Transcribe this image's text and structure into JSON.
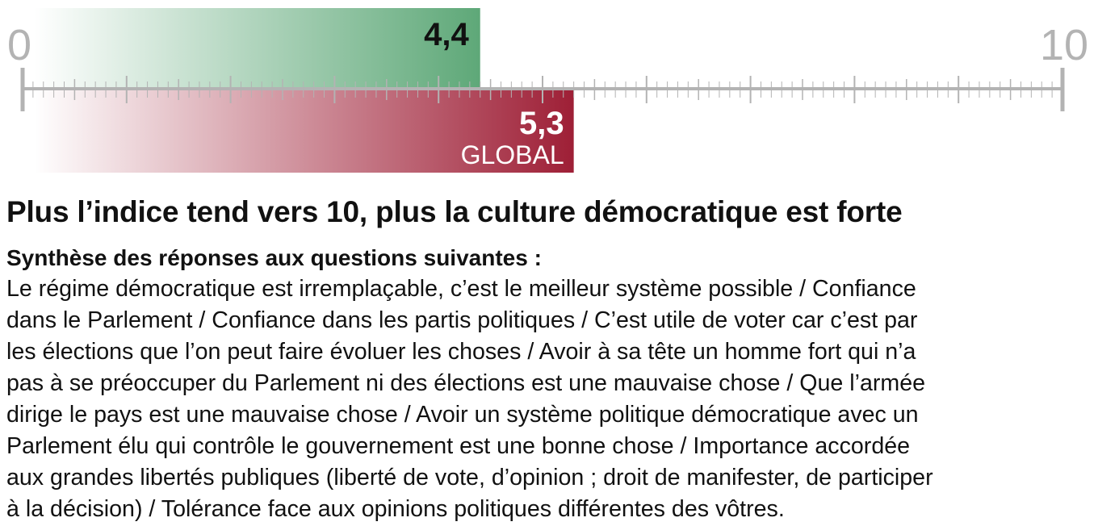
{
  "chart_data": {
    "type": "bar",
    "axis": {
      "min": 0,
      "max": 10,
      "min_label": "0",
      "max_label": "10"
    },
    "bars": [
      {
        "value": 4.4,
        "label": "4,4",
        "sublabel": "",
        "color": "#5ea878"
      },
      {
        "value": 5.3,
        "label": "5,3",
        "sublabel": "GLOBAL",
        "color": "#9e1f36"
      }
    ],
    "axis_color": "#b3b3b3"
  },
  "caption": {
    "title": "Plus l’indice tend vers 10, plus la culture démocratique est forte",
    "subtitle": "Synthèse des réponses aux questions suivantes :",
    "lines": [
      "Le régime démocratique est irremplaçable, c’est le meilleur système possible / Confiance",
      "dans le Parlement / Confiance dans les partis politiques / C’est utile de voter car c’est par",
      "les élections que l’on peut faire évoluer les choses / Avoir à sa tête un homme fort qui n’a",
      "pas à se préoccuper du Parlement ni des élections est une mauvaise chose / Que l’armée",
      "dirige le pays est une mauvaise chose / Avoir un système politique démocratique avec un",
      "Parlement élu qui contrôle le gouvernement est une bonne chose / Importance accordée",
      "aux grandes libertés publiques (liberté de vote, d’opinion ; droit de manifester, de participer",
      "à la décision) / Tolérance face aux opinions politiques différentes des vôtres."
    ]
  }
}
